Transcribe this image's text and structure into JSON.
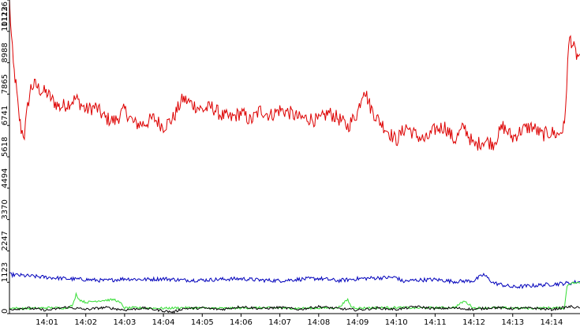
{
  "chart_data": {
    "type": "line",
    "title": "",
    "xlabel": "",
    "ylabel": "",
    "ylim": [
      0,
      11236
    ],
    "yticks": [
      0,
      1123,
      2247,
      3370,
      4494,
      5618,
      6741,
      7865,
      8988,
      10112,
      11236
    ],
    "ytick_labels": [
      "0",
      "1123",
      "2247",
      "3370",
      "4494",
      "5618",
      "6741",
      "7865",
      "8988",
      "10112",
      "11236"
    ],
    "x_start": "14:00:02",
    "x_end": "14:14:44",
    "xtick_labels": [
      "14:01",
      "14:02",
      "14:03",
      "14:04",
      "14:05",
      "14:06",
      "14:07",
      "14:08",
      "14:09",
      "14:10",
      "14:11",
      "14:12",
      "14:13",
      "14:14"
    ],
    "grid": false,
    "legend": "none",
    "series": [
      {
        "color": "#dd0000",
        "x": [
          "14:00:02",
          "14:00:05",
          "14:00:08",
          "14:00:12",
          "14:00:16",
          "14:00:20",
          "14:00:25",
          "14:00:30",
          "14:00:35",
          "14:00:42",
          "14:00:50",
          "14:01:00",
          "14:01:10",
          "14:01:20",
          "14:01:30",
          "14:01:45",
          "14:02:00",
          "14:02:15",
          "14:02:30",
          "14:02:45",
          "14:03:00",
          "14:03:15",
          "14:03:30",
          "14:03:45",
          "14:04:00",
          "14:04:15",
          "14:04:30",
          "14:04:45",
          "14:05:00",
          "14:05:15",
          "14:05:30",
          "14:05:45",
          "14:06:00",
          "14:06:15",
          "14:06:30",
          "14:06:45",
          "14:07:00",
          "14:07:15",
          "14:07:30",
          "14:07:45",
          "14:08:00",
          "14:08:15",
          "14:08:30",
          "14:08:45",
          "14:09:00",
          "14:09:10",
          "14:09:20",
          "14:09:30",
          "14:09:45",
          "14:10:00",
          "14:10:15",
          "14:10:30",
          "14:10:45",
          "14:11:00",
          "14:11:15",
          "14:11:30",
          "14:11:45",
          "14:12:00",
          "14:12:15",
          "14:12:30",
          "14:12:45",
          "14:13:00",
          "14:13:15",
          "14:13:30",
          "14:13:45",
          "14:14:00",
          "14:14:10",
          "14:14:20",
          "14:14:25",
          "14:14:28",
          "14:14:32",
          "14:14:36",
          "14:14:40",
          "14:14:44"
        ],
        "values": [
          11200,
          9900,
          8900,
          8200,
          7200,
          6600,
          6400,
          7400,
          8100,
          8200,
          8000,
          7900,
          7600,
          7400,
          7500,
          7700,
          7300,
          7400,
          7000,
          6900,
          7300,
          6800,
          6800,
          7000,
          6700,
          7000,
          7700,
          7500,
          7300,
          7400,
          7100,
          7000,
          7200,
          6900,
          7300,
          7100,
          7300,
          7200,
          7000,
          7000,
          6900,
          7200,
          7000,
          6700,
          7200,
          8100,
          7400,
          7000,
          6600,
          6200,
          6700,
          6400,
          6200,
          6600,
          6700,
          6200,
          6700,
          6000,
          6200,
          6100,
          6700,
          6300,
          6600,
          6700,
          6400,
          6500,
          6400,
          6700,
          9000,
          9900,
          9700,
          9400,
          9200,
          9300
        ]
      },
      {
        "color": "#0000bb",
        "x": [
          "14:00:02",
          "14:00:30",
          "14:01:00",
          "14:01:30",
          "14:02:00",
          "14:02:30",
          "14:03:00",
          "14:03:30",
          "14:04:00",
          "14:04:30",
          "14:05:00",
          "14:05:30",
          "14:06:00",
          "14:06:30",
          "14:07:00",
          "14:07:30",
          "14:08:00",
          "14:08:30",
          "14:09:00",
          "14:09:30",
          "14:10:00",
          "14:10:10",
          "14:10:30",
          "14:11:00",
          "14:11:30",
          "14:12:00",
          "14:12:15",
          "14:12:30",
          "14:13:00",
          "14:13:30",
          "14:14:00",
          "14:14:30",
          "14:14:44"
        ],
        "values": [
          1400,
          1350,
          1300,
          1250,
          1220,
          1180,
          1250,
          1220,
          1250,
          1200,
          1200,
          1230,
          1250,
          1200,
          1180,
          1230,
          1260,
          1180,
          1250,
          1280,
          1300,
          1150,
          1200,
          1220,
          1150,
          1180,
          1400,
          1100,
          950,
          1000,
          1050,
          1100,
          1150
        ]
      },
      {
        "color": "#33dd33",
        "x": [
          "14:00:02",
          "14:00:30",
          "14:01:00",
          "14:01:30",
          "14:01:40",
          "14:01:45",
          "14:01:50",
          "14:02:00",
          "14:02:15",
          "14:02:30",
          "14:02:45",
          "14:02:55",
          "14:03:00",
          "14:03:15",
          "14:03:30",
          "14:04:00",
          "14:04:30",
          "14:05:00",
          "14:05:30",
          "14:06:00",
          "14:06:30",
          "14:07:00",
          "14:07:30",
          "14:08:00",
          "14:08:30",
          "14:08:45",
          "14:08:50",
          "14:09:00",
          "14:09:30",
          "14:10:00",
          "14:10:30",
          "14:11:00",
          "14:11:30",
          "14:11:45",
          "14:12:00",
          "14:12:30",
          "14:13:00",
          "14:13:30",
          "14:14:00",
          "14:14:20",
          "14:14:24",
          "14:14:30",
          "14:14:44"
        ],
        "values": [
          200,
          180,
          210,
          200,
          300,
          700,
          500,
          400,
          450,
          480,
          500,
          350,
          200,
          210,
          200,
          190,
          210,
          200,
          190,
          200,
          210,
          200,
          190,
          200,
          210,
          500,
          250,
          200,
          210,
          220,
          200,
          210,
          220,
          450,
          200,
          210,
          200,
          190,
          210,
          200,
          1000,
          1100,
          1100
        ]
      },
      {
        "color": "#000000",
        "x": [
          "14:00:02",
          "14:00:30",
          "14:01:00",
          "14:01:30",
          "14:02:00",
          "14:02:30",
          "14:03:00",
          "14:03:30",
          "14:04:00",
          "14:04:15",
          "14:04:30",
          "14:05:00",
          "14:05:30",
          "14:06:00",
          "14:06:30",
          "14:07:00",
          "14:07:30",
          "14:08:00",
          "14:08:30",
          "14:09:00",
          "14:09:30",
          "14:10:00",
          "14:10:30",
          "14:11:00",
          "14:11:30",
          "14:12:00",
          "14:12:30",
          "14:13:00",
          "14:13:30",
          "14:14:00",
          "14:14:30",
          "14:14:44"
        ],
        "values": [
          150,
          200,
          120,
          230,
          150,
          220,
          130,
          200,
          100,
          50,
          180,
          200,
          150,
          250,
          180,
          220,
          150,
          250,
          180,
          130,
          200,
          150,
          250,
          180,
          200,
          150,
          220,
          180,
          200,
          150,
          250,
          200
        ]
      }
    ]
  }
}
